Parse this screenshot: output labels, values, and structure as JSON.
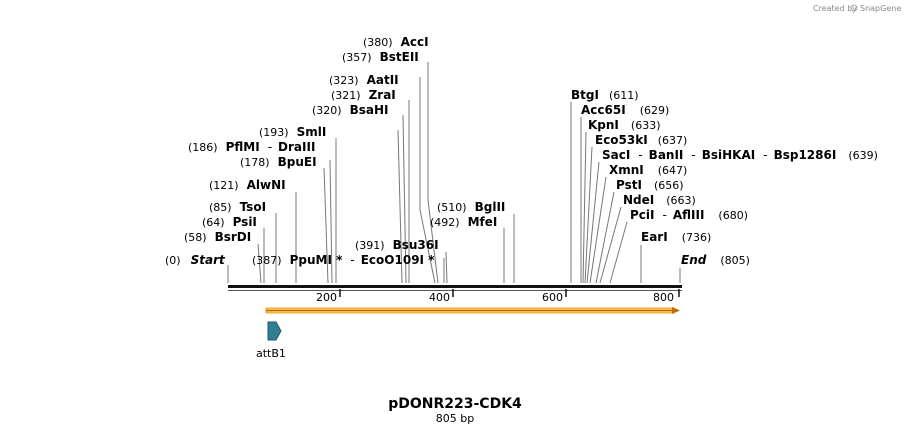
{
  "credit": "Created by",
  "brand": "SnapGene",
  "title": "pDONR223-CDK4",
  "length_label": "805 bp",
  "ruler": {
    "ticks": [
      "200",
      "400",
      "600",
      "800"
    ]
  },
  "feature": {
    "name": "attB1"
  },
  "markers": {
    "start": {
      "pos": "(0)",
      "name": "Start"
    },
    "end": {
      "name": "End",
      "pos": "(805)"
    }
  },
  "sites_left": [
    {
      "pos": "(380)",
      "name": "AccI"
    },
    {
      "pos": "(357)",
      "name": "BstEII"
    },
    {
      "pos": "(323)",
      "name": "AatII"
    },
    {
      "pos": "(321)",
      "name": "ZraI"
    },
    {
      "pos": "(320)",
      "name": "BsaHI"
    },
    {
      "pos": "(193)",
      "name": "SmlI"
    },
    {
      "pos": "(186)",
      "name": "PflMI",
      "sep": "-",
      "name2": "DraIII"
    },
    {
      "pos": "(178)",
      "name": "BpuEI"
    },
    {
      "pos": "(121)",
      "name": "AlwNI"
    },
    {
      "pos": "(85)",
      "name": "TsoI"
    },
    {
      "pos": "(64)",
      "name": "PsiI"
    },
    {
      "pos": "(58)",
      "name": "BsrDI"
    },
    {
      "pos": "(387)",
      "name": "PpuMI *",
      "sep": "-",
      "name2": "EcoO109I *"
    },
    {
      "pos": "(391)",
      "name": "Bsu36I"
    },
    {
      "pos": "(510)",
      "name": "BglII"
    },
    {
      "pos": "(492)",
      "name": "MfeI"
    }
  ],
  "sites_right": [
    {
      "name": "BtgI",
      "pos": "(611)"
    },
    {
      "name": "Acc65I",
      "pos": "(629)"
    },
    {
      "name": "KpnI",
      "pos": "(633)"
    },
    {
      "name": "Eco53kI",
      "pos": "(637)"
    },
    {
      "name": "SacI",
      "sep": "-",
      "name2": "BanII",
      "sep2": "-",
      "name3": "BsiHKAI",
      "sep3": "-",
      "name4": "Bsp1286I",
      "pos": "(639)"
    },
    {
      "name": "XmnI",
      "pos": "(647)"
    },
    {
      "name": "PstI",
      "pos": "(656)"
    },
    {
      "name": "NdeI",
      "pos": "(663)"
    },
    {
      "name": "PciI",
      "sep": "-",
      "name2": "AflIII",
      "pos": "(680)"
    },
    {
      "name": "EarI",
      "pos": "(736)"
    }
  ],
  "colors": {
    "backbone": "#111111",
    "orf_fill": "#f5c35a",
    "orf_line": "#c46a00",
    "feature_fill": "#2e7f93"
  }
}
